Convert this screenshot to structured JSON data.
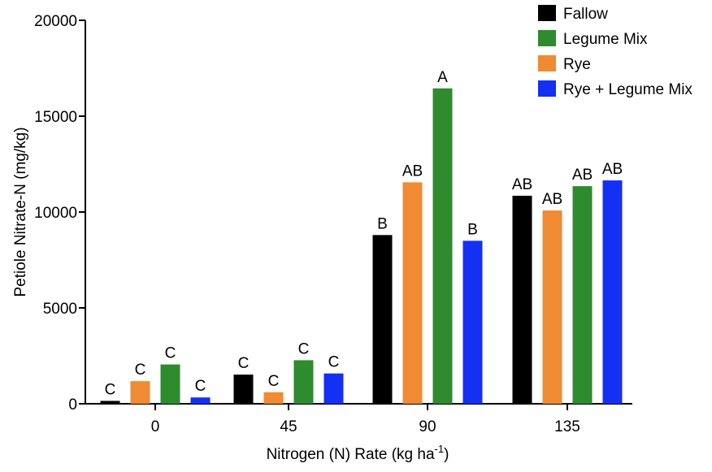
{
  "chart_data": {
    "type": "bar",
    "title": "",
    "xlabel": "Nitrogen (N) Rate (kg ha",
    "xlabel_superscript": "-1",
    "xlabel_suffix": ")",
    "ylabel": "Petiole Nitrate-N (mg/kg)",
    "ylim": [
      0,
      20000
    ],
    "yticks": [
      "0",
      "5000",
      "10000",
      "15000",
      "20000"
    ],
    "grid": false,
    "legend_position": "top-right",
    "categories": [
      "0",
      "45",
      "90",
      "135"
    ],
    "series": [
      {
        "name": "Fallow",
        "color": "#000000",
        "values": [
          150,
          1520,
          8800,
          10850
        ]
      },
      {
        "name": "Rye",
        "color": "#F08A33",
        "values": [
          1180,
          600,
          11550,
          10080
        ]
      },
      {
        "name": "Legume Mix",
        "color": "#2E8B2E",
        "values": [
          2050,
          2270,
          16450,
          11350
        ]
      },
      {
        "name": "Rye + Legume Mix",
        "color": "#1430F5",
        "values": [
          330,
          1580,
          8500,
          11650
        ]
      }
    ],
    "labels": [
      [
        "C",
        "C",
        "B",
        "AB"
      ],
      [
        "C",
        "C",
        "AB",
        "AB"
      ],
      [
        "C",
        "C",
        "A",
        "AB"
      ],
      [
        "C",
        "C",
        "B",
        "AB"
      ]
    ],
    "legend_order": [
      "Fallow",
      "Legume Mix",
      "Rye",
      "Rye + Legume Mix"
    ]
  }
}
